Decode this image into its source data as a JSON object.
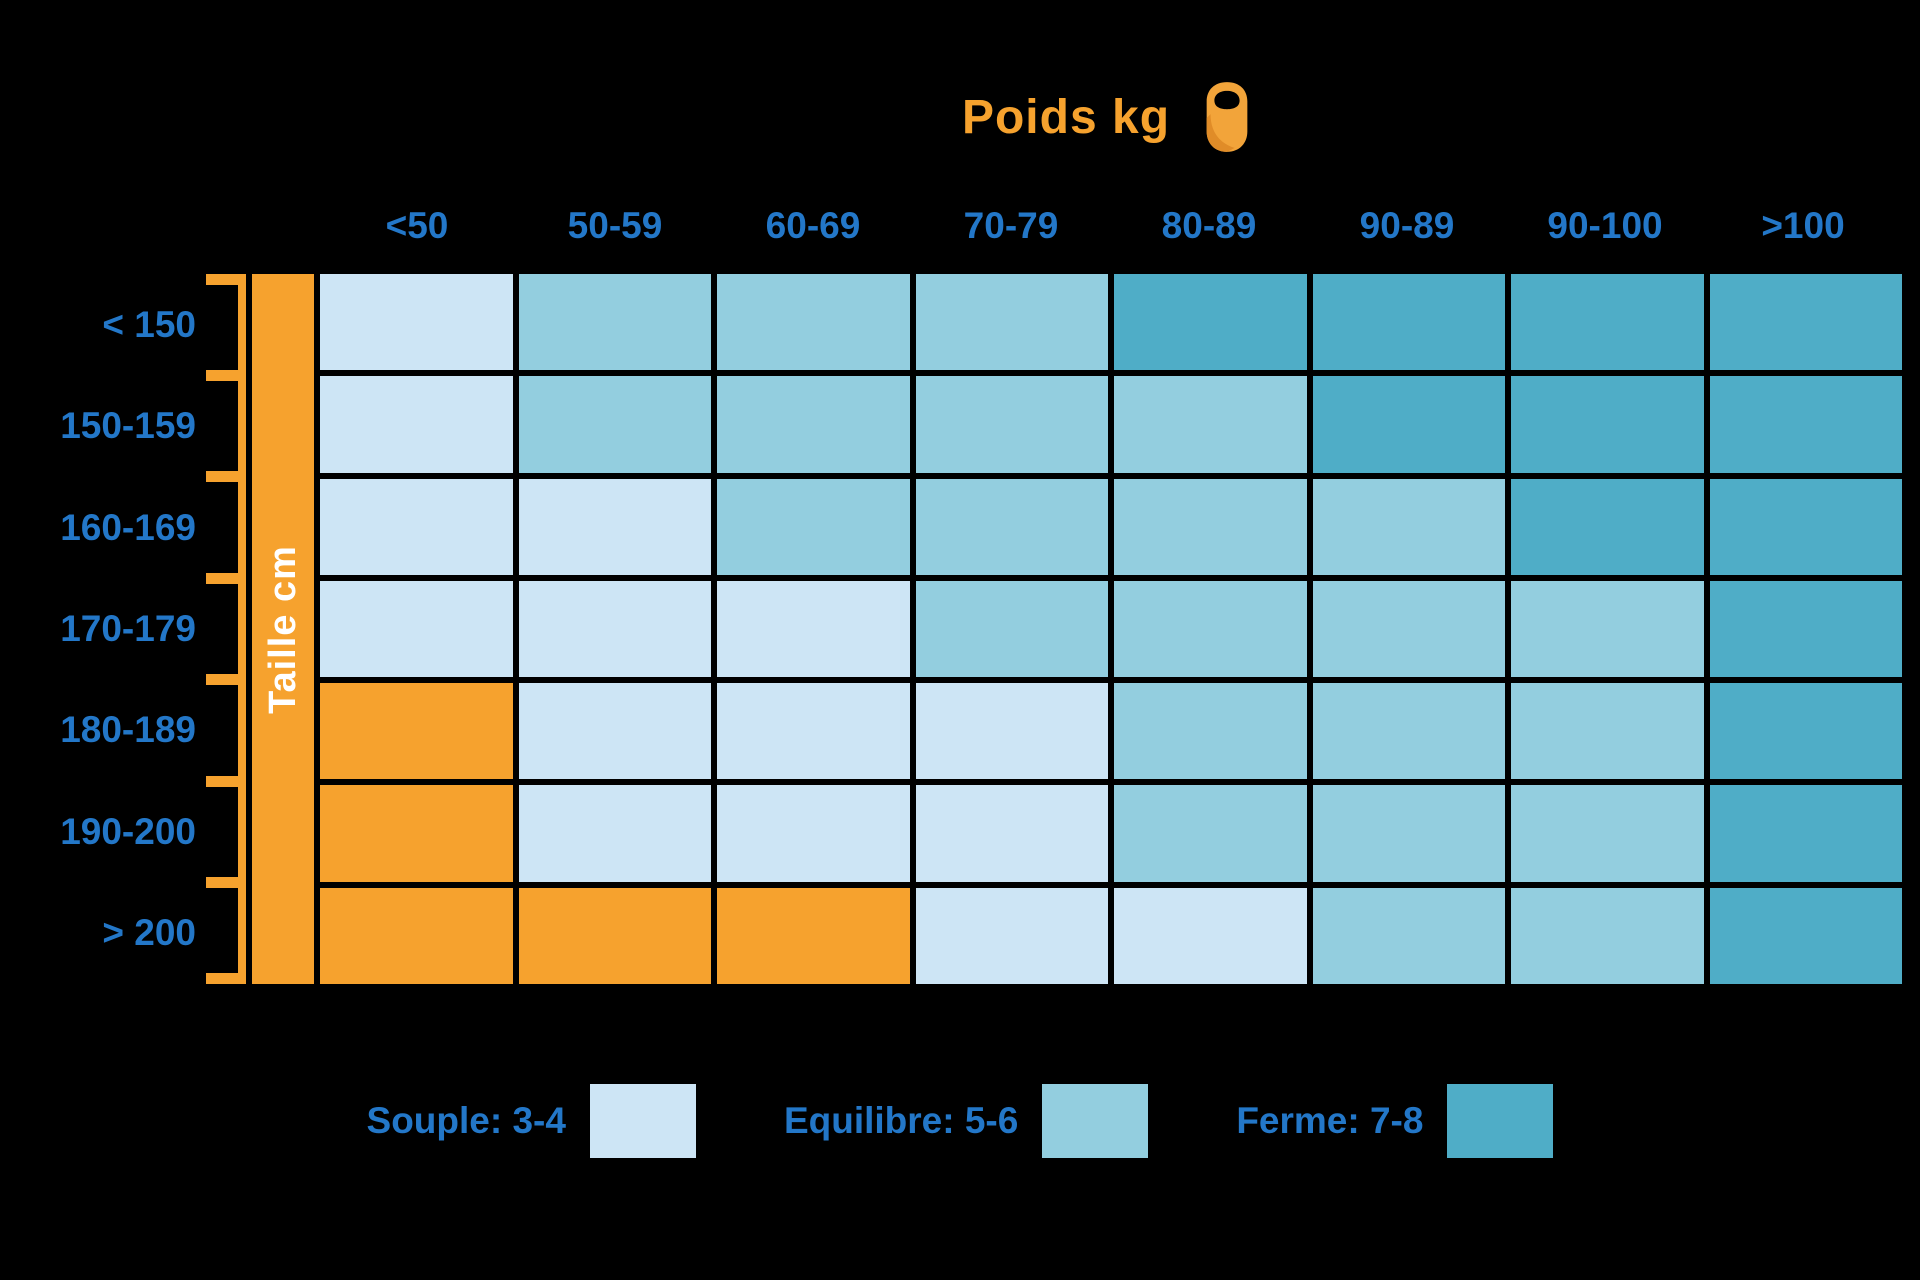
{
  "title": {
    "text": "Poids kg",
    "icon": "kettlebell-icon"
  },
  "x_axis": {
    "labels": [
      "<50",
      "50-59",
      "60-69",
      "70-79",
      "80-89",
      "90-89",
      "90-100",
      ">100"
    ]
  },
  "y_axis": {
    "label": "Taille cm",
    "labels": [
      "< 150",
      "150-159",
      "160-169",
      "170-179",
      "180-189",
      "190-200",
      "> 200"
    ]
  },
  "legend": [
    {
      "label": "Souple: 3-4",
      "key": "souple"
    },
    {
      "label": "Equilibre: 5-6",
      "key": "equilibre"
    },
    {
      "label": "Ferme: 7-8",
      "key": "ferme"
    }
  ],
  "colors": {
    "souple": "#CDE5F5",
    "equilibre": "#93CEDF",
    "ferme": "#4FADC7",
    "orange": "#F6A22E",
    "blue": "#2377C8",
    "background": "#000000",
    "band_text": "#FFFFFF"
  },
  "chart_data": {
    "type": "heatmap",
    "title": "Poids kg",
    "xlabel": "Poids kg",
    "ylabel": "Taille cm",
    "x_categories": [
      "<50",
      "50-59",
      "60-69",
      "70-79",
      "80-89",
      "90-89",
      "90-100",
      ">100"
    ],
    "y_categories": [
      "< 150",
      "150-159",
      "160-169",
      "170-179",
      "180-189",
      "190-200",
      "> 200"
    ],
    "values": [
      [
        "souple",
        "equilibre",
        "equilibre",
        "equilibre",
        "ferme",
        "ferme",
        "ferme",
        "ferme"
      ],
      [
        "souple",
        "equilibre",
        "equilibre",
        "equilibre",
        "equilibre",
        "ferme",
        "ferme",
        "ferme"
      ],
      [
        "souple",
        "souple",
        "equilibre",
        "equilibre",
        "equilibre",
        "equilibre",
        "ferme",
        "ferme"
      ],
      [
        "souple",
        "souple",
        "souple",
        "equilibre",
        "equilibre",
        "equilibre",
        "equilibre",
        "ferme"
      ],
      [
        "orange",
        "souple",
        "souple",
        "souple",
        "equilibre",
        "equilibre",
        "equilibre",
        "ferme"
      ],
      [
        "orange",
        "souple",
        "souple",
        "souple",
        "equilibre",
        "equilibre",
        "equilibre",
        "ferme"
      ],
      [
        "orange",
        "orange",
        "orange",
        "souple",
        "souple",
        "equilibre",
        "equilibre",
        "ferme"
      ]
    ],
    "value_legend": {
      "souple": "3-4",
      "equilibre": "5-6",
      "ferme": "7-8",
      "orange": ""
    },
    "legend_position": "bottom",
    "grid": true
  }
}
